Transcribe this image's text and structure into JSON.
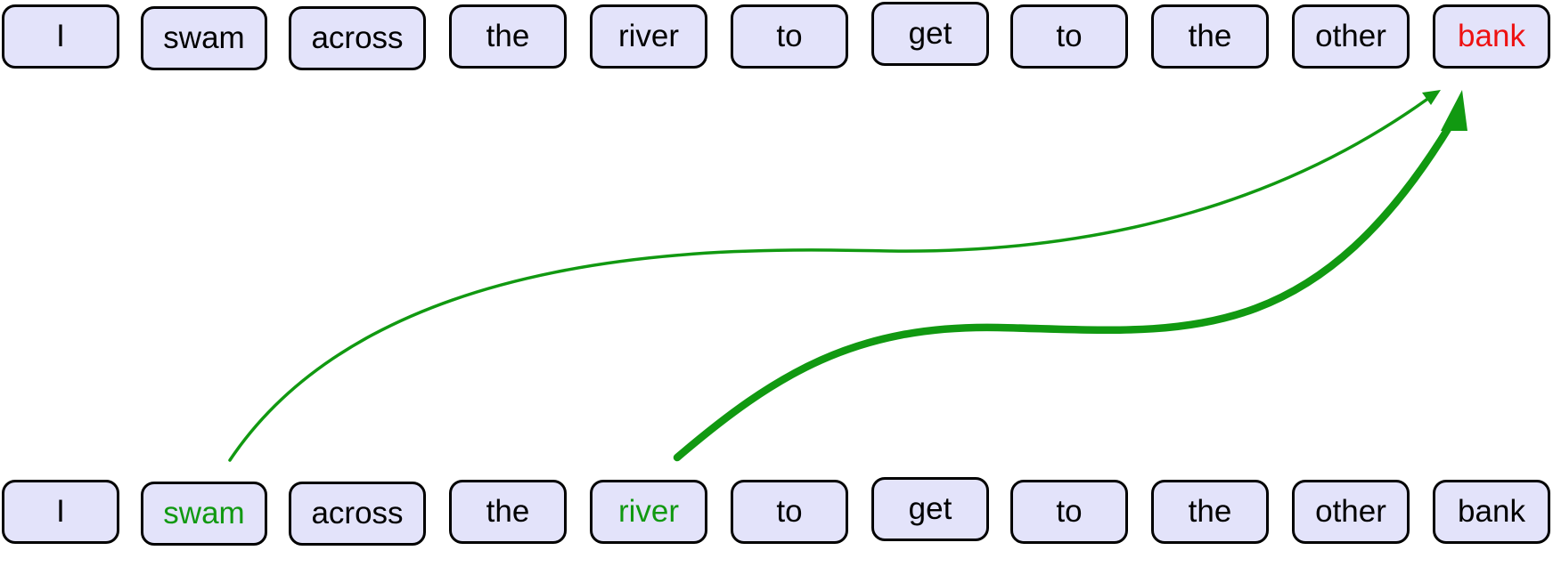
{
  "colors": {
    "token_fill": "#e3e3fa",
    "token_border": "#000000",
    "text_default": "#000000",
    "query_highlight": "#ee1111",
    "key_highlight": "#119911",
    "arrow": "#119911"
  },
  "top_tokens": [
    "I",
    "swam",
    "across",
    "the",
    "river",
    "to",
    "get",
    "to",
    "the",
    "other",
    "bank"
  ],
  "bottom_tokens": [
    "I",
    "swam",
    "across",
    "the",
    "river",
    "to",
    "get",
    "to",
    "the",
    "other",
    "bank"
  ],
  "query_token_index": 10,
  "attention": [
    {
      "from_index": 1,
      "to_index": 10,
      "strength": "weak"
    },
    {
      "from_index": 4,
      "to_index": 10,
      "strength": "strong"
    }
  ]
}
